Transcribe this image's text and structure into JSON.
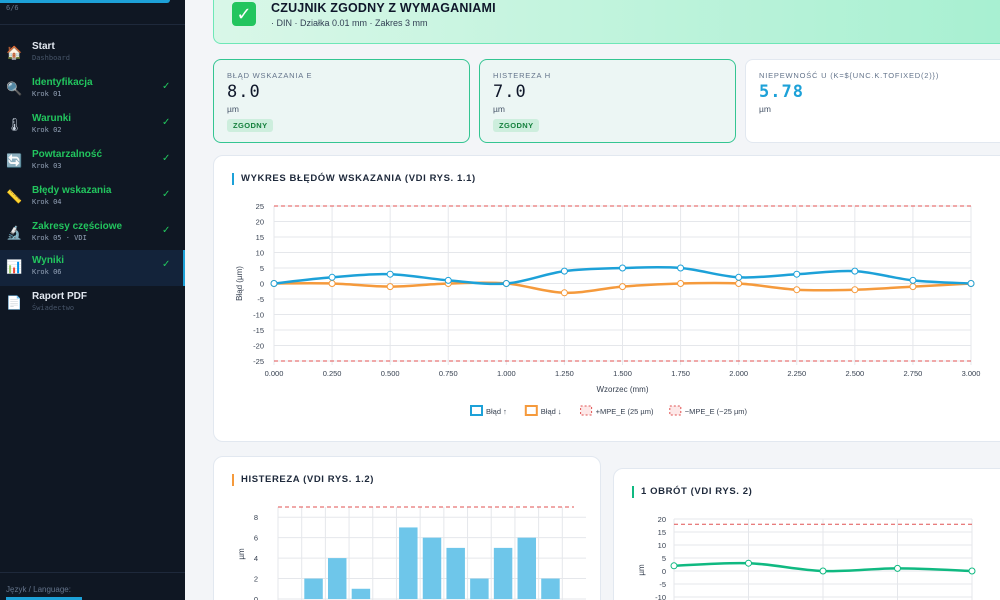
{
  "sidebar": {
    "progress": "6/6",
    "items": [
      {
        "label": "Start",
        "sub": "Dashboard",
        "icon": "house-icon",
        "glyph": "🏠",
        "done": false
      },
      {
        "label": "Identyfikacja",
        "sub": "Krok 01",
        "icon": "magnifier-icon",
        "glyph": "🔍",
        "done": true
      },
      {
        "label": "Warunki",
        "sub": "Krok 02",
        "icon": "thermometer-icon",
        "glyph": "🌡",
        "done": true
      },
      {
        "label": "Powtarzalność",
        "sub": "Krok 03",
        "icon": "repeat-icon",
        "glyph": "🔄",
        "done": true
      },
      {
        "label": "Błędy wskazania",
        "sub": "Krok 04",
        "icon": "ruler-icon",
        "glyph": "📏",
        "done": true
      },
      {
        "label": "Zakresy częściowe",
        "sub": "Krok 05 · VDI",
        "icon": "microscope-icon",
        "glyph": "🔬",
        "done": true
      },
      {
        "label": "Wyniki",
        "sub": "Krok 06",
        "icon": "bar-chart-icon",
        "glyph": "📊",
        "done": true,
        "active": true
      },
      {
        "label": "Raport PDF",
        "sub": "Świadectwo",
        "icon": "document-icon",
        "glyph": "📄",
        "done": false
      }
    ],
    "check_glyph": "✓",
    "language_label": "Język / Language:"
  },
  "banner": {
    "icon": "check-box-icon",
    "glyph": "✓",
    "title": "CZUJNIK ZGODNY Z WYMAGANIAMI",
    "subtitle": "· DIN · Działka 0.01 mm · Zakres 3 mm"
  },
  "stats": [
    {
      "label": "BŁĄD WSKAZANIA E",
      "value": "8.0",
      "unit": "µm",
      "badge": "ZGODNY"
    },
    {
      "label": "HISTEREZA H",
      "value": "7.0",
      "unit": "µm",
      "badge": "ZGODNY"
    },
    {
      "label": "NIEPEWNOŚĆ U (K=${UNC.K.TOFIXED(2)})",
      "value": "5.78",
      "unit": "µm",
      "badge": ""
    }
  ],
  "colors": {
    "blue": "#1da1d8",
    "orange": "#f59a3c",
    "red": "#e05252",
    "green": "#10b981",
    "bar": "#6ec6ea"
  },
  "chart_data": [
    {
      "type": "line",
      "title": "WYKRES BŁĘDÓW WSKAZANIA (VDI RYS. 1.1)",
      "xlabel": "Wzorzec (mm)",
      "ylabel": "Błąd (µm)",
      "x": [
        0.0,
        0.25,
        0.5,
        0.75,
        1.0,
        1.25,
        1.5,
        1.75,
        2.0,
        2.25,
        2.5,
        2.75,
        3.0
      ],
      "x_ticks": [
        "0.000",
        "0.250",
        "0.500",
        "0.750",
        "1.000",
        "1.250",
        "1.500",
        "1.750",
        "2.000",
        "2.250",
        "2.500",
        "2.750",
        "3.000"
      ],
      "y_ticks": [
        "25",
        "20",
        "15",
        "10",
        "5",
        "0",
        "-5",
        "-10",
        "-15",
        "-20",
        "-25"
      ],
      "ylim": [
        -25,
        25
      ],
      "series": [
        {
          "name": "Błąd ↑",
          "values": [
            0,
            2,
            3,
            1,
            0,
            4,
            5,
            5,
            2,
            3,
            4,
            1,
            0
          ]
        },
        {
          "name": "Błąd ↓",
          "values": [
            0,
            0,
            -1,
            0,
            0,
            -3,
            -1,
            0,
            0,
            -2,
            -2,
            -1,
            0
          ]
        },
        {
          "name": "+MPE_E (25 µm)",
          "values": [
            25,
            25,
            25,
            25,
            25,
            25,
            25,
            25,
            25,
            25,
            25,
            25,
            25
          ]
        },
        {
          "name": "−MPE_E (−25 µm)",
          "values": [
            -25,
            -25,
            -25,
            -25,
            -25,
            -25,
            -25,
            -25,
            -25,
            -25,
            -25,
            -25,
            -25
          ]
        }
      ],
      "grid": true,
      "legend": "bottom"
    },
    {
      "type": "bar",
      "title": "HISTEREZA (VDI RYS. 1.2)",
      "ylabel": "µm",
      "y_ticks": [
        "8",
        "6",
        "4",
        "2",
        "0"
      ],
      "values": [
        0,
        2,
        4,
        1,
        0,
        7,
        6,
        5,
        2,
        5,
        6,
        2,
        0
      ],
      "limit": 9,
      "ylim": [
        0,
        9
      ],
      "grid": true
    },
    {
      "type": "line",
      "title": "1 OBRÓT (VDI RYS. 2)",
      "ylabel": "µm",
      "y_ticks": [
        "20",
        "15",
        "10",
        "5",
        "0",
        "-5",
        "-10"
      ],
      "values": [
        2,
        3,
        0,
        1,
        0
      ],
      "limit": 18,
      "ylim": [
        -25,
        25
      ],
      "grid": true
    }
  ]
}
